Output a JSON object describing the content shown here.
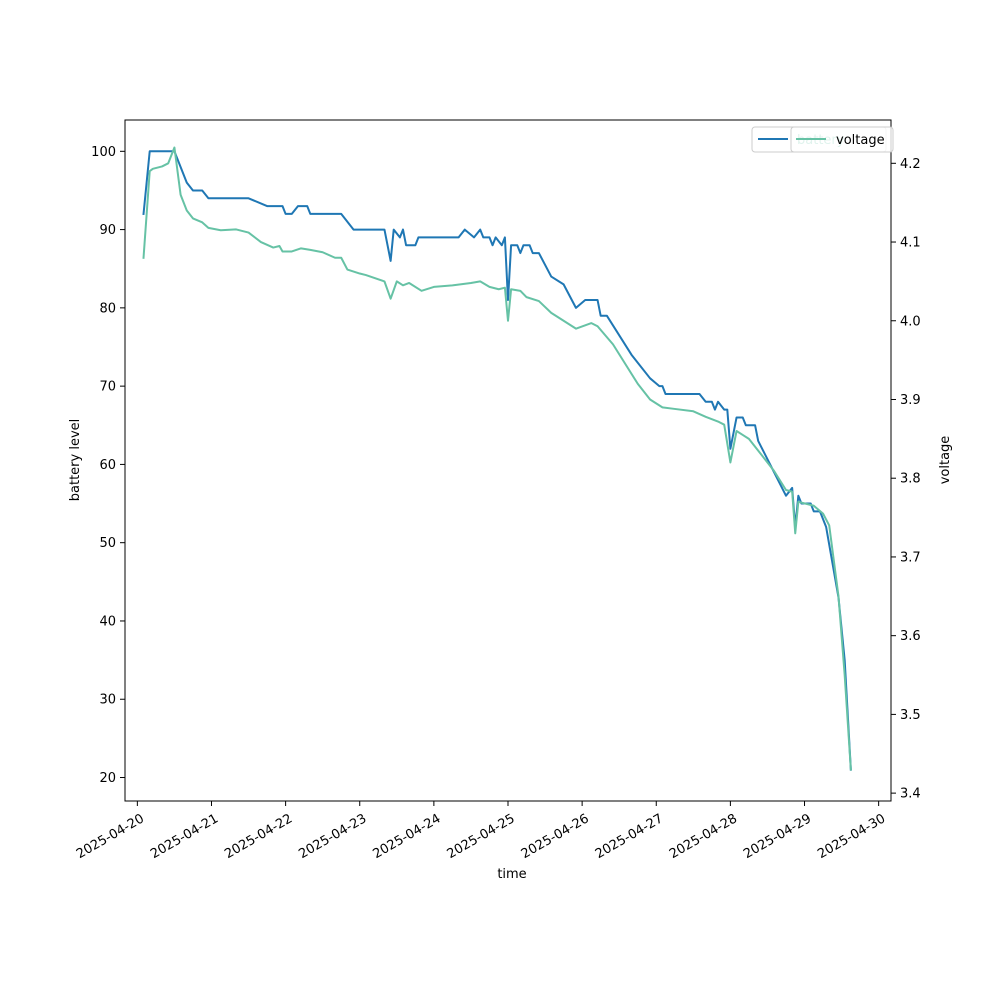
{
  "chart_data": {
    "type": "line",
    "xlabel": "time",
    "ylabel_left": "battery level",
    "ylabel_right": "voltage",
    "x_range": [
      "2025-04-19T20:00",
      "2025-04-30T04:00"
    ],
    "ylim_left": [
      17,
      104
    ],
    "ylim_right": [
      3.39,
      4.255
    ],
    "x_ticks": [
      "2025-04-20",
      "2025-04-21",
      "2025-04-22",
      "2025-04-23",
      "2025-04-24",
      "2025-04-25",
      "2025-04-26",
      "2025-04-27",
      "2025-04-28",
      "2025-04-29",
      "2025-04-30"
    ],
    "y_ticks_left": [
      20,
      30,
      40,
      50,
      60,
      70,
      80,
      90,
      100
    ],
    "y_ticks_right": [
      3.4,
      3.5,
      3.6,
      3.7,
      3.8,
      3.9,
      4.0,
      4.1,
      4.2
    ],
    "grid": false,
    "legend_placement": "top-right",
    "series": [
      {
        "name": "battery",
        "axis": "left",
        "color": "#1f77b4",
        "points": [
          [
            "2025-04-20T02:00",
            92
          ],
          [
            "2025-04-20T04:00",
            100
          ],
          [
            "2025-04-20T12:00",
            100
          ],
          [
            "2025-04-20T14:00",
            98
          ],
          [
            "2025-04-20T16:00",
            96
          ],
          [
            "2025-04-20T18:00",
            95
          ],
          [
            "2025-04-20T21:00",
            95
          ],
          [
            "2025-04-20T23:00",
            94
          ],
          [
            "2025-04-21T12:00",
            94
          ],
          [
            "2025-04-21T18:00",
            93
          ],
          [
            "2025-04-21T23:00",
            93
          ],
          [
            "2025-04-22T00:00",
            92
          ],
          [
            "2025-04-22T02:00",
            92
          ],
          [
            "2025-04-22T04:00",
            93
          ],
          [
            "2025-04-22T07:00",
            93
          ],
          [
            "2025-04-22T08:00",
            92
          ],
          [
            "2025-04-22T18:00",
            92
          ],
          [
            "2025-04-22T22:00",
            90
          ],
          [
            "2025-04-23T08:00",
            90
          ],
          [
            "2025-04-23T10:00",
            86
          ],
          [
            "2025-04-23T11:00",
            90
          ],
          [
            "2025-04-23T13:00",
            89
          ],
          [
            "2025-04-23T14:00",
            90
          ],
          [
            "2025-04-23T15:00",
            88
          ],
          [
            "2025-04-23T18:00",
            88
          ],
          [
            "2025-04-23T19:00",
            89
          ],
          [
            "2025-04-24T08:00",
            89
          ],
          [
            "2025-04-24T10:00",
            90
          ],
          [
            "2025-04-24T13:00",
            89
          ],
          [
            "2025-04-24T15:00",
            90
          ],
          [
            "2025-04-24T16:00",
            89
          ],
          [
            "2025-04-24T18:00",
            89
          ],
          [
            "2025-04-24T19:00",
            88
          ],
          [
            "2025-04-24T20:00",
            89
          ],
          [
            "2025-04-24T22:00",
            88
          ],
          [
            "2025-04-24T23:00",
            89
          ],
          [
            "2025-04-25T00:00",
            81
          ],
          [
            "2025-04-25T01:00",
            88
          ],
          [
            "2025-04-25T03:00",
            88
          ],
          [
            "2025-04-25T04:00",
            87
          ],
          [
            "2025-04-25T05:00",
            88
          ],
          [
            "2025-04-25T07:00",
            88
          ],
          [
            "2025-04-25T08:00",
            87
          ],
          [
            "2025-04-25T10:00",
            87
          ],
          [
            "2025-04-25T14:00",
            84
          ],
          [
            "2025-04-25T18:00",
            83
          ],
          [
            "2025-04-25T22:00",
            80
          ],
          [
            "2025-04-26T01:00",
            81
          ],
          [
            "2025-04-26T05:00",
            81
          ],
          [
            "2025-04-26T06:00",
            79
          ],
          [
            "2025-04-26T08:00",
            79
          ],
          [
            "2025-04-26T16:00",
            74
          ],
          [
            "2025-04-26T22:00",
            71
          ],
          [
            "2025-04-27T01:00",
            70
          ],
          [
            "2025-04-27T02:00",
            70
          ],
          [
            "2025-04-27T03:00",
            69
          ],
          [
            "2025-04-27T14:00",
            69
          ],
          [
            "2025-04-27T16:00",
            68
          ],
          [
            "2025-04-27T18:00",
            68
          ],
          [
            "2025-04-27T19:00",
            67
          ],
          [
            "2025-04-27T20:00",
            68
          ],
          [
            "2025-04-27T22:00",
            67
          ],
          [
            "2025-04-27T23:00",
            67
          ],
          [
            "2025-04-28T00:00",
            62
          ],
          [
            "2025-04-28T02:00",
            66
          ],
          [
            "2025-04-28T04:00",
            66
          ],
          [
            "2025-04-28T05:00",
            65
          ],
          [
            "2025-04-28T08:00",
            65
          ],
          [
            "2025-04-28T09:00",
            63
          ],
          [
            "2025-04-28T18:00",
            56
          ],
          [
            "2025-04-28T20:00",
            57
          ],
          [
            "2025-04-28T21:00",
            52
          ],
          [
            "2025-04-28T22:00",
            56
          ],
          [
            "2025-04-28T23:00",
            55
          ],
          [
            "2025-04-29T02:00",
            55
          ],
          [
            "2025-04-29T03:00",
            54
          ],
          [
            "2025-04-29T05:00",
            54
          ],
          [
            "2025-04-29T07:00",
            52
          ],
          [
            "2025-04-29T11:00",
            43
          ],
          [
            "2025-04-29T13:00",
            35
          ],
          [
            "2025-04-29T15:00",
            21
          ]
        ]
      },
      {
        "name": "voltage",
        "axis": "right",
        "color": "#66c2a5",
        "points": [
          [
            "2025-04-20T02:00",
            4.08
          ],
          [
            "2025-04-20T04:00",
            4.19
          ],
          [
            "2025-04-20T05:00",
            4.193
          ],
          [
            "2025-04-20T08:00",
            4.196
          ],
          [
            "2025-04-20T10:00",
            4.2
          ],
          [
            "2025-04-20T12:00",
            4.22
          ],
          [
            "2025-04-20T14:00",
            4.16
          ],
          [
            "2025-04-20T16:00",
            4.14
          ],
          [
            "2025-04-20T18:00",
            4.13
          ],
          [
            "2025-04-20T21:00",
            4.125
          ],
          [
            "2025-04-20T23:00",
            4.118
          ],
          [
            "2025-04-21T03:00",
            4.115
          ],
          [
            "2025-04-21T08:00",
            4.116
          ],
          [
            "2025-04-21T12:00",
            4.112
          ],
          [
            "2025-04-21T16:00",
            4.1
          ],
          [
            "2025-04-21T20:00",
            4.093
          ],
          [
            "2025-04-21T22:00",
            4.095
          ],
          [
            "2025-04-21T23:00",
            4.088
          ],
          [
            "2025-04-22T02:00",
            4.088
          ],
          [
            "2025-04-22T05:00",
            4.092
          ],
          [
            "2025-04-22T08:00",
            4.09
          ],
          [
            "2025-04-22T12:00",
            4.087
          ],
          [
            "2025-04-22T16:00",
            4.08
          ],
          [
            "2025-04-22T18:00",
            4.08
          ],
          [
            "2025-04-22T20:00",
            4.065
          ],
          [
            "2025-04-23T00:00",
            4.06
          ],
          [
            "2025-04-23T02:00",
            4.058
          ],
          [
            "2025-04-23T08:00",
            4.05
          ],
          [
            "2025-04-23T10:00",
            4.028
          ],
          [
            "2025-04-23T12:00",
            4.05
          ],
          [
            "2025-04-23T14:00",
            4.045
          ],
          [
            "2025-04-23T16:00",
            4.048
          ],
          [
            "2025-04-23T20:00",
            4.038
          ],
          [
            "2025-04-24T00:00",
            4.043
          ],
          [
            "2025-04-24T06:00",
            4.045
          ],
          [
            "2025-04-24T12:00",
            4.048
          ],
          [
            "2025-04-24T15:00",
            4.05
          ],
          [
            "2025-04-24T18:00",
            4.043
          ],
          [
            "2025-04-24T21:00",
            4.04
          ],
          [
            "2025-04-24T23:00",
            4.042
          ],
          [
            "2025-04-25T00:00",
            4.0
          ],
          [
            "2025-04-25T01:00",
            4.04
          ],
          [
            "2025-04-25T04:00",
            4.038
          ],
          [
            "2025-04-25T06:00",
            4.03
          ],
          [
            "2025-04-25T10:00",
            4.025
          ],
          [
            "2025-04-25T14:00",
            4.01
          ],
          [
            "2025-04-25T18:00",
            4.0
          ],
          [
            "2025-04-25T22:00",
            3.99
          ],
          [
            "2025-04-26T03:00",
            3.997
          ],
          [
            "2025-04-26T05:00",
            3.993
          ],
          [
            "2025-04-26T10:00",
            3.97
          ],
          [
            "2025-04-26T18:00",
            3.92
          ],
          [
            "2025-04-26T22:00",
            3.9
          ],
          [
            "2025-04-27T02:00",
            3.89
          ],
          [
            "2025-04-27T06:00",
            3.888
          ],
          [
            "2025-04-27T12:00",
            3.885
          ],
          [
            "2025-04-27T16:00",
            3.878
          ],
          [
            "2025-04-27T20:00",
            3.872
          ],
          [
            "2025-04-27T22:00",
            3.868
          ],
          [
            "2025-04-28T00:00",
            3.82
          ],
          [
            "2025-04-28T02:00",
            3.86
          ],
          [
            "2025-04-28T04:00",
            3.855
          ],
          [
            "2025-04-28T06:00",
            3.85
          ],
          [
            "2025-04-28T14:00",
            3.81
          ],
          [
            "2025-04-28T18:00",
            3.785
          ],
          [
            "2025-04-28T20:00",
            3.783
          ],
          [
            "2025-04-28T21:00",
            3.73
          ],
          [
            "2025-04-28T22:00",
            3.77
          ],
          [
            "2025-04-29T03:00",
            3.765
          ],
          [
            "2025-04-29T06:00",
            3.755
          ],
          [
            "2025-04-29T08:00",
            3.74
          ],
          [
            "2025-04-29T11:00",
            3.65
          ],
          [
            "2025-04-29T13:00",
            3.55
          ],
          [
            "2025-04-29T15:00",
            3.43
          ]
        ]
      }
    ]
  }
}
